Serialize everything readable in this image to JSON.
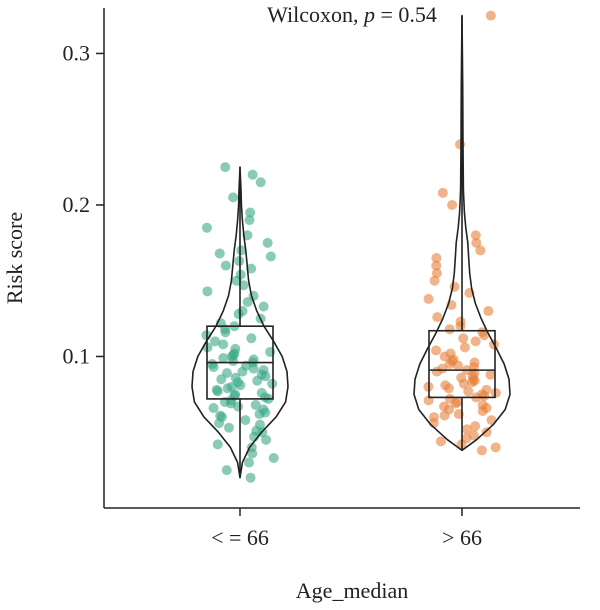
{
  "chart_data": {
    "type": "violin-box-jitter",
    "xlabel": "Age_median",
    "ylabel": "Risk score",
    "ylim": [
      0.0,
      0.33
    ],
    "yticks": [
      0.1,
      0.2,
      0.3
    ],
    "ytick_labels": [
      "0.1",
      "0.2",
      "0.3"
    ],
    "annotation": {
      "prefix": "Wilcoxon, ",
      "p_symbol": "p",
      "suffix": " = 0.54"
    },
    "groups": [
      {
        "name": "< = 66",
        "color": "#3aa887",
        "min": 0.02,
        "q1": 0.072,
        "median": 0.096,
        "q3": 0.12,
        "max": 0.225,
        "violin": [
          [
            0.02,
            0.0
          ],
          [
            0.03,
            0.05
          ],
          [
            0.04,
            0.2
          ],
          [
            0.05,
            0.45
          ],
          [
            0.06,
            0.75
          ],
          [
            0.07,
            0.95
          ],
          [
            0.08,
            1.0
          ],
          [
            0.09,
            0.98
          ],
          [
            0.1,
            0.88
          ],
          [
            0.11,
            0.7
          ],
          [
            0.12,
            0.5
          ],
          [
            0.13,
            0.35
          ],
          [
            0.14,
            0.24
          ],
          [
            0.15,
            0.18
          ],
          [
            0.16,
            0.15
          ],
          [
            0.17,
            0.12
          ],
          [
            0.18,
            0.08
          ],
          [
            0.19,
            0.05
          ],
          [
            0.2,
            0.03
          ],
          [
            0.21,
            0.02
          ],
          [
            0.225,
            0.0
          ]
        ],
        "points": [
          0.02,
          0.025,
          0.03,
          0.033,
          0.036,
          0.04,
          0.042,
          0.045,
          0.047,
          0.05,
          0.051,
          0.053,
          0.055,
          0.056,
          0.058,
          0.06,
          0.061,
          0.062,
          0.063,
          0.065,
          0.066,
          0.067,
          0.068,
          0.069,
          0.07,
          0.071,
          0.072,
          0.073,
          0.074,
          0.075,
          0.076,
          0.077,
          0.078,
          0.079,
          0.08,
          0.081,
          0.082,
          0.083,
          0.084,
          0.085,
          0.086,
          0.087,
          0.088,
          0.089,
          0.09,
          0.091,
          0.092,
          0.093,
          0.094,
          0.095,
          0.096,
          0.097,
          0.098,
          0.099,
          0.1,
          0.101,
          0.102,
          0.103,
          0.105,
          0.106,
          0.108,
          0.11,
          0.112,
          0.114,
          0.116,
          0.118,
          0.12,
          0.122,
          0.125,
          0.128,
          0.13,
          0.133,
          0.136,
          0.14,
          0.143,
          0.147,
          0.15,
          0.154,
          0.158,
          0.16,
          0.163,
          0.166,
          0.168,
          0.17,
          0.175,
          0.18,
          0.185,
          0.19,
          0.195,
          0.205,
          0.215,
          0.22,
          0.225
        ]
      },
      {
        "name": "> 66",
        "color": "#e8803a",
        "min": 0.038,
        "q1": 0.073,
        "median": 0.091,
        "q3": 0.117,
        "max": 0.325,
        "violin": [
          [
            0.038,
            0.0
          ],
          [
            0.045,
            0.3
          ],
          [
            0.055,
            0.65
          ],
          [
            0.065,
            0.9
          ],
          [
            0.075,
            1.0
          ],
          [
            0.085,
            0.98
          ],
          [
            0.095,
            0.88
          ],
          [
            0.105,
            0.72
          ],
          [
            0.115,
            0.55
          ],
          [
            0.125,
            0.4
          ],
          [
            0.135,
            0.28
          ],
          [
            0.145,
            0.2
          ],
          [
            0.155,
            0.16
          ],
          [
            0.165,
            0.14
          ],
          [
            0.175,
            0.12
          ],
          [
            0.185,
            0.08
          ],
          [
            0.195,
            0.05
          ],
          [
            0.21,
            0.03
          ],
          [
            0.24,
            0.02
          ],
          [
            0.28,
            0.015
          ],
          [
            0.325,
            0.0
          ]
        ],
        "points": [
          0.038,
          0.04,
          0.042,
          0.044,
          0.046,
          0.048,
          0.05,
          0.052,
          0.054,
          0.056,
          0.058,
          0.06,
          0.061,
          0.062,
          0.064,
          0.065,
          0.066,
          0.067,
          0.068,
          0.069,
          0.07,
          0.071,
          0.072,
          0.073,
          0.074,
          0.075,
          0.076,
          0.077,
          0.078,
          0.079,
          0.08,
          0.081,
          0.082,
          0.083,
          0.084,
          0.085,
          0.086,
          0.087,
          0.088,
          0.089,
          0.09,
          0.091,
          0.092,
          0.093,
          0.094,
          0.095,
          0.096,
          0.097,
          0.098,
          0.1,
          0.102,
          0.104,
          0.106,
          0.108,
          0.11,
          0.112,
          0.114,
          0.116,
          0.118,
          0.12,
          0.123,
          0.126,
          0.13,
          0.134,
          0.138,
          0.142,
          0.146,
          0.15,
          0.155,
          0.16,
          0.165,
          0.17,
          0.175,
          0.18,
          0.2,
          0.208,
          0.24,
          0.325
        ]
      }
    ]
  }
}
